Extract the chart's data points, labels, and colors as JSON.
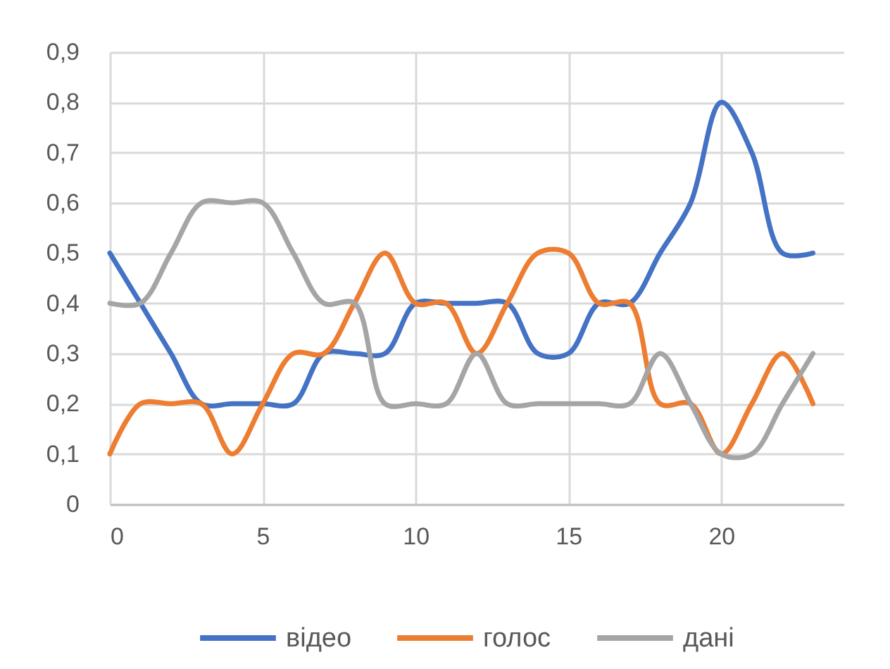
{
  "chart_data": {
    "type": "line",
    "x": [
      0,
      1,
      2,
      3,
      4,
      5,
      6,
      7,
      8,
      9,
      10,
      11,
      12,
      13,
      14,
      15,
      16,
      17,
      18,
      19,
      20,
      21,
      22,
      23
    ],
    "series": [
      {
        "name": "відео",
        "color": "#4472c4",
        "values": [
          0.5,
          0.4,
          0.3,
          0.2,
          0.2,
          0.2,
          0.2,
          0.3,
          0.3,
          0.3,
          0.4,
          0.4,
          0.4,
          0.4,
          0.3,
          0.3,
          0.4,
          0.4,
          0.5,
          0.6,
          0.8,
          0.7,
          0.5,
          0.5
        ]
      },
      {
        "name": "голос",
        "color": "#ed7d31",
        "values": [
          0.1,
          0.2,
          0.2,
          0.2,
          0.1,
          0.2,
          0.3,
          0.3,
          0.4,
          0.5,
          0.4,
          0.4,
          0.3,
          0.4,
          0.5,
          0.5,
          0.4,
          0.4,
          0.2,
          0.2,
          0.1,
          0.2,
          0.3,
          0.2
        ]
      },
      {
        "name": "дані",
        "color": "#a5a5a5",
        "values": [
          0.4,
          0.4,
          0.5,
          0.6,
          0.6,
          0.6,
          0.5,
          0.4,
          0.4,
          0.2,
          0.2,
          0.2,
          0.3,
          0.2,
          0.2,
          0.2,
          0.2,
          0.2,
          0.3,
          0.2,
          0.1,
          0.1,
          0.2,
          0.3
        ]
      }
    ],
    "xlim": [
      0,
      24
    ],
    "xticks": [
      0,
      5,
      10,
      15,
      20
    ],
    "ylim": [
      0,
      0.9
    ],
    "yticks": [
      0,
      {
        "value": 0.1,
        "label": "0,1"
      },
      {
        "value": 0.2,
        "label": "0,2"
      },
      {
        "value": 0.3,
        "label": "0,3"
      },
      {
        "value": 0.4,
        "label": "0,4"
      },
      {
        "value": 0.5,
        "label": "0,5"
      },
      {
        "value": 0.6,
        "label": "0,6"
      },
      {
        "value": 0.7,
        "label": "0,7"
      },
      {
        "value": 0.8,
        "label": "0,8"
      },
      {
        "value": 0.9,
        "label": "0,9"
      }
    ],
    "grid": true,
    "legend": "bottom",
    "line_style": "solid"
  }
}
